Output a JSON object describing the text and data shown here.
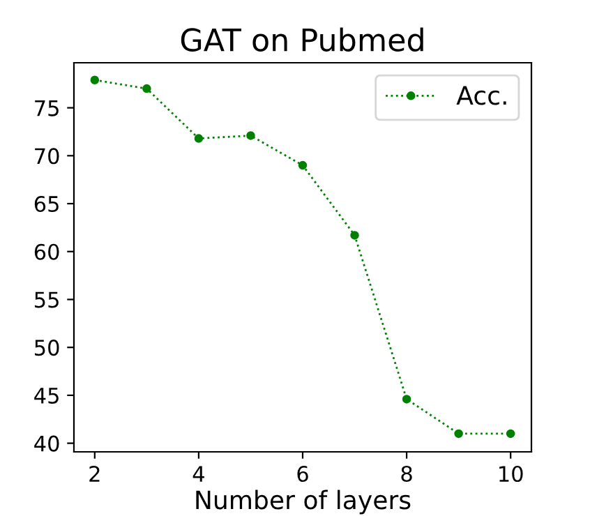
{
  "chart_data": {
    "type": "line",
    "title": "GAT on Pubmed",
    "xlabel": "Number of layers",
    "x": [
      2,
      3,
      4,
      5,
      6,
      7,
      8,
      9,
      10
    ],
    "series": [
      {
        "name": "Acc.",
        "color": "#008000",
        "values": [
          77.9,
          77.0,
          71.8,
          72.1,
          69.0,
          61.7,
          44.6,
          41.0,
          41.0
        ]
      }
    ],
    "xlim": [
      1.6,
      10.4
    ],
    "ylim": [
      39.1,
      79.7
    ],
    "xticks": [
      2,
      4,
      6,
      8,
      10
    ],
    "yticks": [
      40,
      45,
      50,
      55,
      60,
      65,
      70,
      75
    ],
    "marker": "circle",
    "line_style": "dotted",
    "legend": "top right",
    "grid": false
  }
}
